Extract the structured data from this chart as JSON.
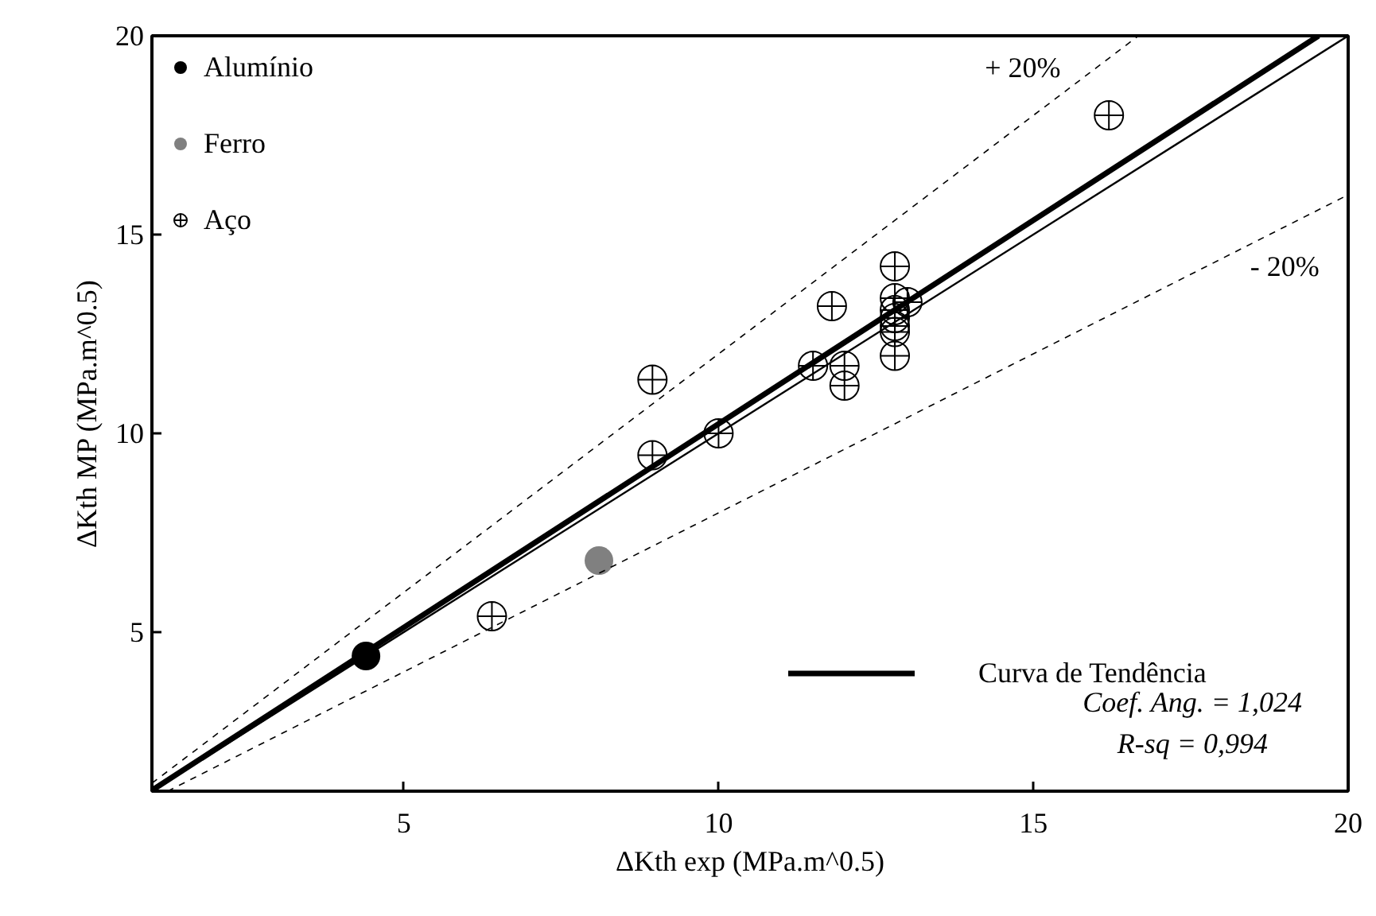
{
  "chart_data": {
    "type": "scatter",
    "xlabel": "ΔKth exp (MPa.m^0.5)",
    "ylabel": "ΔKth MP (MPa.m^0.5)",
    "xlim": [
      1,
      20
    ],
    "ylim": [
      1,
      20
    ],
    "xticks": [
      5,
      10,
      15,
      20
    ],
    "yticks": [
      5,
      10,
      15,
      20
    ],
    "grid": false,
    "legend": "top left",
    "series": [
      {
        "name": "Alumínio",
        "marker": "circle",
        "color": "#000000",
        "x": [
          4.4
        ],
        "values": [
          4.4
        ]
      },
      {
        "name": "Ferro",
        "marker": "circle",
        "color": "#808080",
        "x": [
          8.1
        ],
        "values": [
          6.8
        ]
      },
      {
        "name": "Aço",
        "marker": "circle_cross",
        "color": "#000000",
        "x": [
          6.4,
          8.95,
          8.95,
          10.0,
          16.2,
          11.8,
          11.5,
          12.0,
          12.0,
          12.8,
          12.8,
          13.0,
          12.8,
          12.8,
          12.8,
          12.8,
          12.8
        ],
        "values": [
          5.4,
          11.35,
          9.45,
          10.0,
          18.0,
          13.2,
          11.7,
          11.7,
          11.2,
          14.2,
          13.4,
          13.3,
          13.1,
          12.9,
          12.7,
          12.55,
          11.95
        ]
      },
      {
        "type": "line",
        "line_style": "solid",
        "color": "#000000",
        "x": [
          1,
          20
        ],
        "values": [
          1,
          20
        ]
      },
      {
        "name": "Curva de Tendência",
        "type": "line",
        "line_style": "solid",
        "color": "#000000",
        "x": [
          1,
          19.53
        ],
        "values": [
          1.02,
          20
        ]
      },
      {
        "type": "line",
        "line_style": "dashed",
        "color": "#000000",
        "x": [
          1,
          16.67
        ],
        "values": [
          1.2,
          20
        ]
      },
      {
        "type": "line",
        "line_style": "dashed",
        "color": "#000000",
        "x": [
          1.25,
          20
        ],
        "values": [
          1,
          16
        ]
      }
    ],
    "annotations": [
      "+ 20%",
      "- 20%",
      "Coef. Ang. = 1,024",
      "R-sq = 0,994"
    ]
  }
}
